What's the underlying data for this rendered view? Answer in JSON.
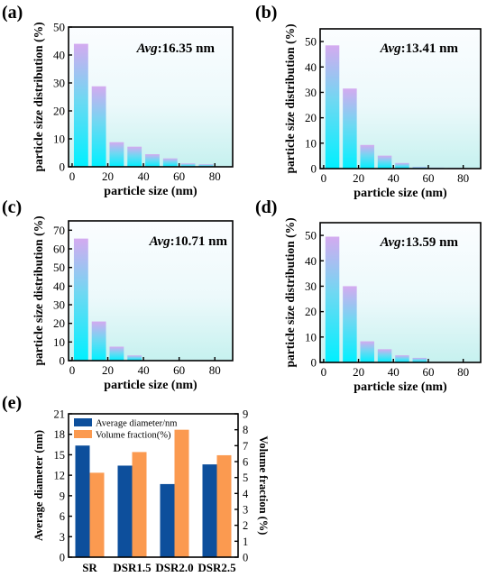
{
  "chart_data": [
    {
      "panel_label": "(a)",
      "type": "bar",
      "x": [
        5,
        15,
        25,
        35,
        45,
        55,
        65,
        75
      ],
      "values": [
        44,
        28.8,
        8.8,
        7.2,
        4.5,
        3.0,
        1.2,
        0.9
      ],
      "xlabel": "particle size (nm)",
      "ylabel": "particle size distribution (%)",
      "xlim": [
        -2,
        90
      ],
      "ylim": [
        0,
        50
      ],
      "xticks": [
        0,
        20,
        40,
        60,
        80
      ],
      "yticks": [
        0,
        10,
        20,
        30,
        40,
        50
      ],
      "annotation": {
        "prefix": "Avg",
        "text": ":16.35 nm"
      }
    },
    {
      "panel_label": "(b)",
      "type": "bar",
      "x": [
        5,
        15,
        25,
        35,
        45,
        55,
        65,
        75
      ],
      "values": [
        48.5,
        31.5,
        9.3,
        5.1,
        2.2,
        0.7,
        0.4,
        0.3
      ],
      "xlabel": "particle size (nm)",
      "ylabel": "particle size distribution (%)",
      "xlim": [
        -2,
        90
      ],
      "ylim": [
        0,
        55
      ],
      "xticks": [
        0,
        20,
        40,
        60,
        80
      ],
      "yticks": [
        0,
        10,
        20,
        30,
        40,
        50
      ],
      "annotation": {
        "prefix": "Avg",
        "text": ":13.41 nm"
      }
    },
    {
      "panel_label": "(c)",
      "type": "bar",
      "x": [
        5,
        15,
        25,
        35
      ],
      "values": [
        65.5,
        21,
        7.5,
        2.8
      ],
      "xlabel": "particle size (nm)",
      "ylabel": "particle size distribution (%)",
      "xlim": [
        -2,
        90
      ],
      "ylim": [
        0,
        75
      ],
      "xticks": [
        0,
        20,
        40,
        60,
        80
      ],
      "yticks": [
        0,
        10,
        20,
        30,
        40,
        50,
        60,
        70
      ],
      "annotation": {
        "prefix": "Avg",
        "text": ":10.71 nm"
      }
    },
    {
      "panel_label": "(d)",
      "type": "bar",
      "x": [
        5,
        15,
        25,
        35,
        45,
        55
      ],
      "values": [
        49.5,
        30,
        8.3,
        5.2,
        2.8,
        1.8
      ],
      "xlabel": "particle size (nm)",
      "ylabel": "particle size distribution (%)",
      "xlim": [
        -2,
        90
      ],
      "ylim": [
        0,
        55
      ],
      "xticks": [
        0,
        20,
        40,
        60,
        80
      ],
      "yticks": [
        0,
        10,
        20,
        30,
        40,
        50
      ],
      "annotation": {
        "prefix": "Avg",
        "text": ":13.59 nm"
      }
    },
    {
      "panel_label": "(e)",
      "type": "bar",
      "categories": [
        "SR",
        "DSR1.5",
        "DSR2.0",
        "DSR2.5"
      ],
      "series": [
        {
          "name": "Average diameter/nm",
          "axis": "left",
          "color": "#0d4f9c",
          "values": [
            16.35,
            13.41,
            10.71,
            13.59
          ]
        },
        {
          "name": "Volume fraction(%)",
          "axis": "right",
          "color": "#fb9a50",
          "values": [
            5.3,
            6.6,
            8.0,
            6.4
          ]
        }
      ],
      "ylabel": "Average diameter (nm)",
      "ylabel_right": "Volume fraction (%)",
      "ylim": [
        0,
        21
      ],
      "yticks": [
        0,
        3,
        6,
        9,
        12,
        15,
        18,
        21
      ],
      "ylim_right": [
        0,
        9
      ],
      "yticks_right": [
        0,
        1,
        2,
        3,
        4,
        5,
        6,
        7,
        8,
        9
      ],
      "legend_position": "top-left"
    }
  ],
  "colors": {
    "bar_top": "#d4aaf0",
    "bar_middle": "#6fd8f2",
    "bar_bottom": "#00f0ff",
    "plot_bg_top": "#fbfdff",
    "plot_bg_bottom": "#c6f1ef"
  }
}
